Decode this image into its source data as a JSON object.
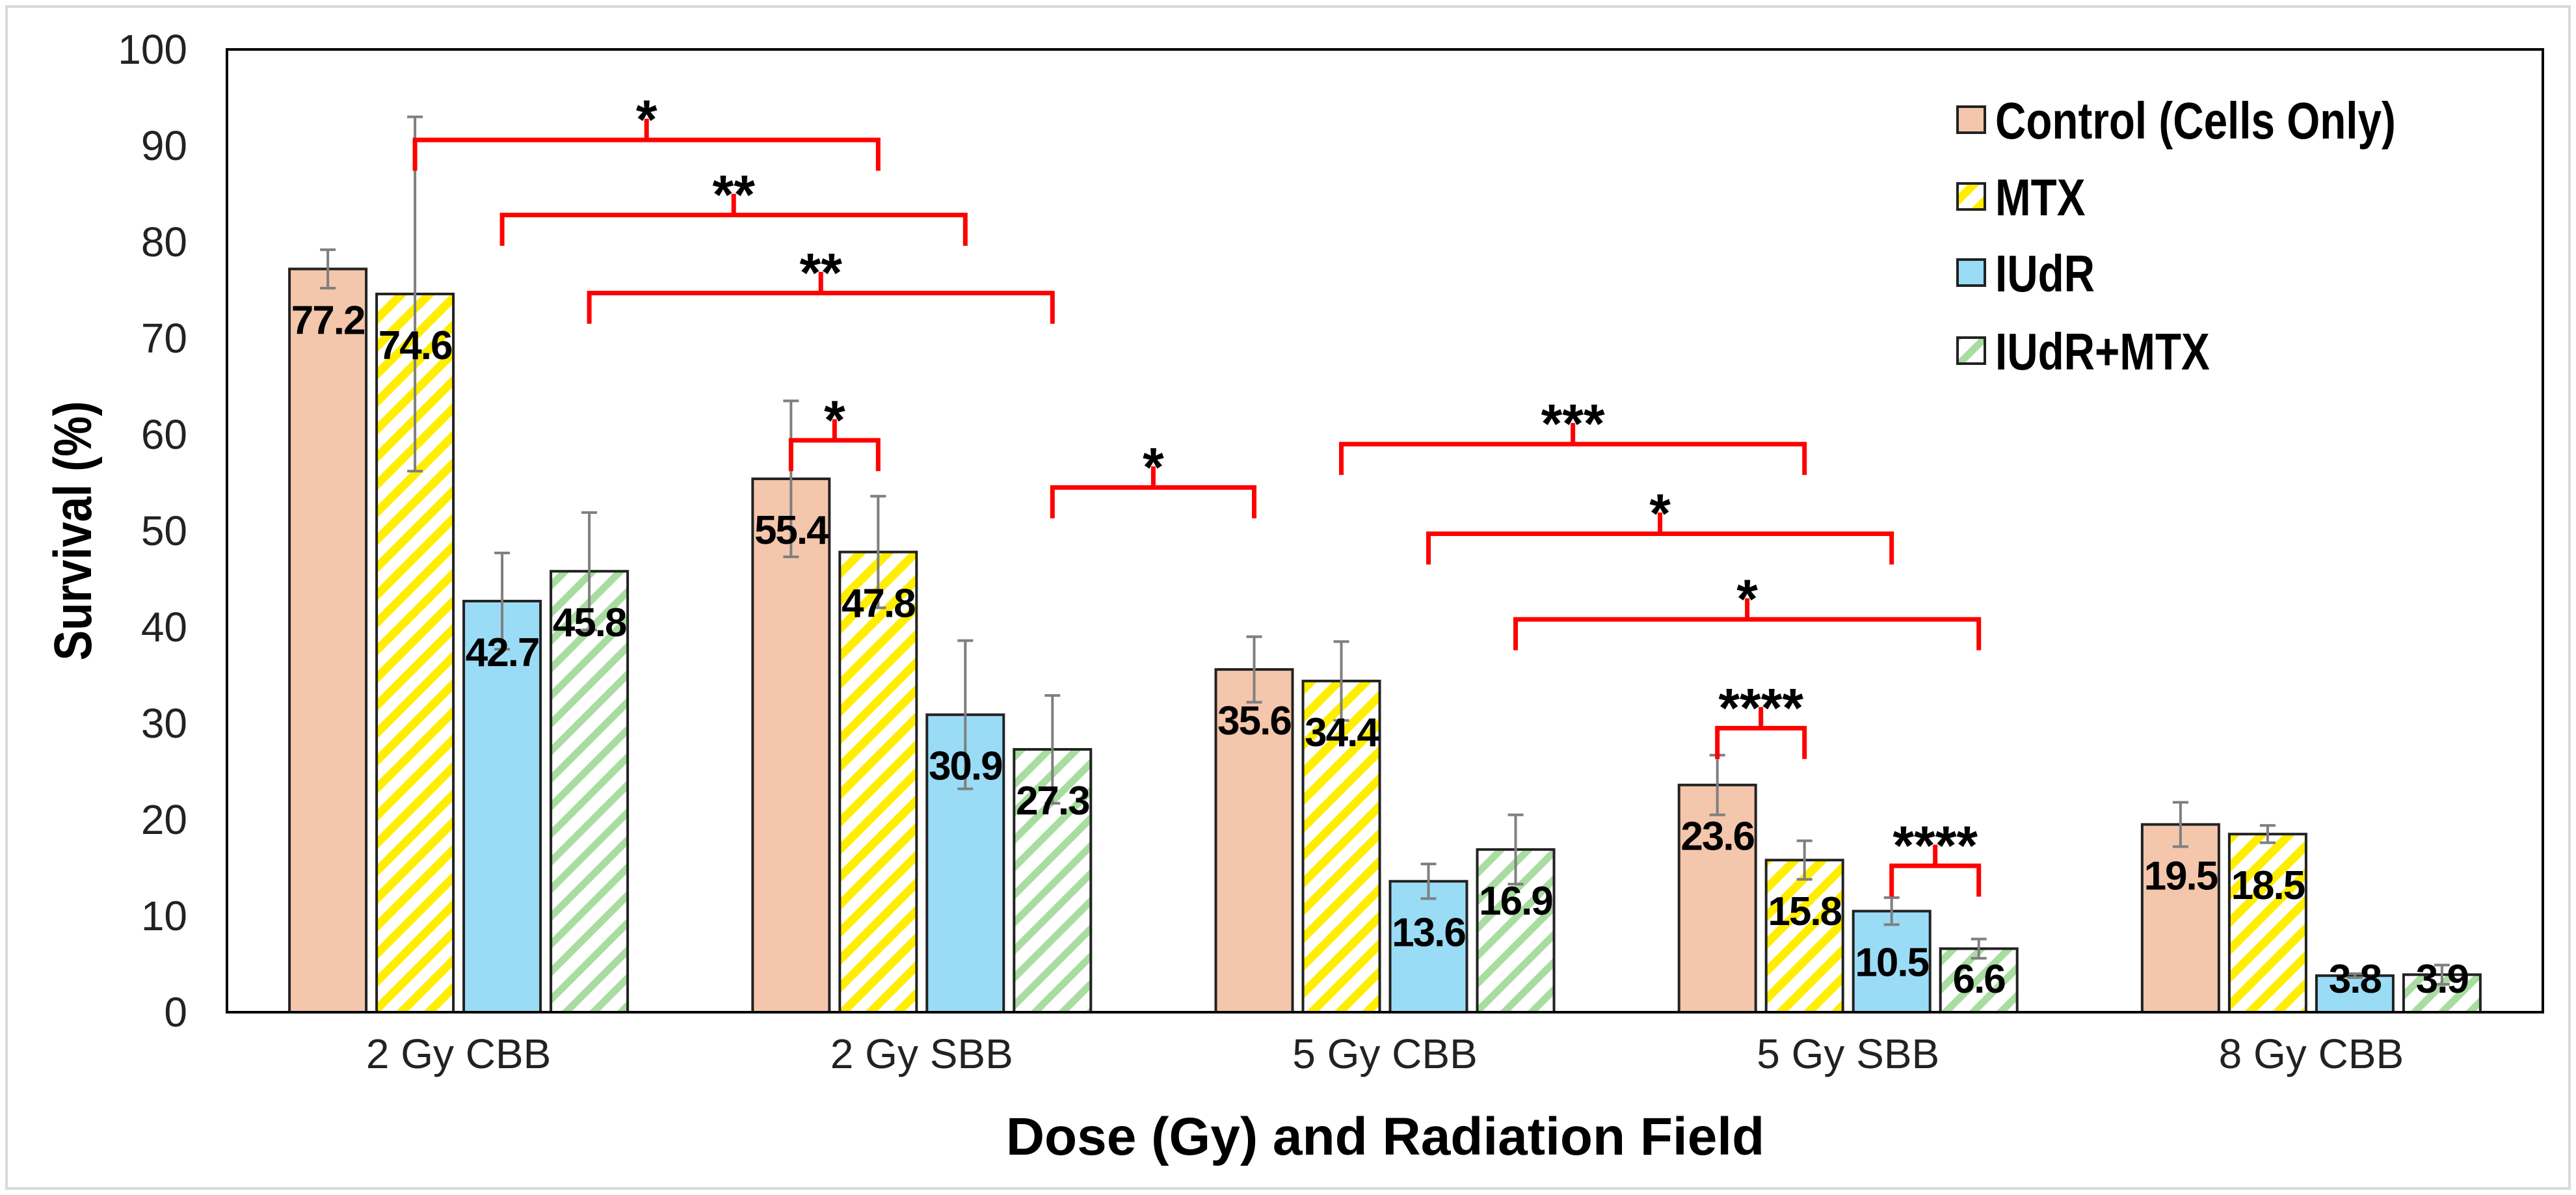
{
  "chart_data": {
    "type": "bar",
    "title": "",
    "xlabel": "Dose (Gy) and Radiation Field",
    "ylabel": "Survival (%)",
    "ylim": [
      0,
      100
    ],
    "yticks": [
      "0",
      "10",
      "20",
      "30",
      "40",
      "50",
      "60",
      "70",
      "80",
      "90",
      "100"
    ],
    "grid": false,
    "legend_position": "top-right",
    "categories": [
      "2 Gy CBB",
      "2 Gy SBB",
      "5 Gy CBB",
      "5 Gy SBB",
      "8 Gy CBB"
    ],
    "series": [
      {
        "name": "Control (Cells Only)",
        "color": "#f4c6ab",
        "pattern": "solid",
        "values": [
          77.2,
          55.4,
          35.6,
          23.6,
          19.5
        ],
        "errors": [
          2.0,
          8.1,
          3.4,
          3.1,
          2.3
        ]
      },
      {
        "name": "MTX",
        "color": "#ffee00",
        "pattern": "hatch",
        "values": [
          74.6,
          47.8,
          34.4,
          15.8,
          18.5
        ],
        "errors": [
          18.4,
          5.8,
          4.1,
          2.0,
          0.9
        ]
      },
      {
        "name": "IUdR",
        "color": "#9adcf6",
        "pattern": "solid",
        "values": [
          42.7,
          30.9,
          13.6,
          10.5,
          3.8
        ],
        "errors": [
          5.0,
          7.7,
          1.8,
          1.4,
          0.2
        ]
      },
      {
        "name": "IUdR+MTX",
        "color": "#a8dca0",
        "pattern": "hatch",
        "values": [
          45.8,
          27.3,
          16.9,
          6.6,
          3.9
        ],
        "errors": [
          6.1,
          5.6,
          3.6,
          1.0,
          1.0
        ]
      }
    ],
    "data_labels": [
      [
        "77.2",
        "55.4",
        "35.6",
        "23.6",
        "19.5"
      ],
      [
        "74.6",
        "47.8",
        "34.4",
        "15.8",
        "18.5"
      ],
      [
        "42.7",
        "30.9",
        "13.6",
        "10.5",
        "3.8"
      ],
      [
        "45.8",
        "27.3",
        "16.9",
        "6.6",
        "3.9"
      ]
    ],
    "significance": [
      {
        "from": [
          0,
          1
        ],
        "to": [
          1,
          1
        ],
        "level": 90.6,
        "label": "*"
      },
      {
        "from": [
          0,
          2
        ],
        "to": [
          1,
          2
        ],
        "level": 82.8,
        "label": "**"
      },
      {
        "from": [
          0,
          3
        ],
        "to": [
          1,
          3
        ],
        "level": 74.7,
        "label": "**"
      },
      {
        "from": [
          1,
          0
        ],
        "to": [
          1,
          1
        ],
        "level": 59.4,
        "label": "*"
      },
      {
        "from": [
          1,
          3
        ],
        "to": [
          2,
          0
        ],
        "level": 54.5,
        "label": "*"
      },
      {
        "from": [
          2,
          1
        ],
        "to": [
          3,
          1
        ],
        "level": 59.0,
        "label": "***"
      },
      {
        "from": [
          2,
          2
        ],
        "to": [
          3,
          2
        ],
        "level": 49.7,
        "label": "*"
      },
      {
        "from": [
          2,
          3
        ],
        "to": [
          3,
          3
        ],
        "level": 40.8,
        "label": "*"
      },
      {
        "from": [
          3,
          0
        ],
        "to": [
          3,
          1
        ],
        "level": 29.5,
        "label": "****"
      },
      {
        "from": [
          3,
          2
        ],
        "to": [
          3,
          3
        ],
        "level": 15.2,
        "label": "****"
      }
    ],
    "bracket_color": "#ff0000",
    "errorbar_color": "#7f7f7f"
  }
}
